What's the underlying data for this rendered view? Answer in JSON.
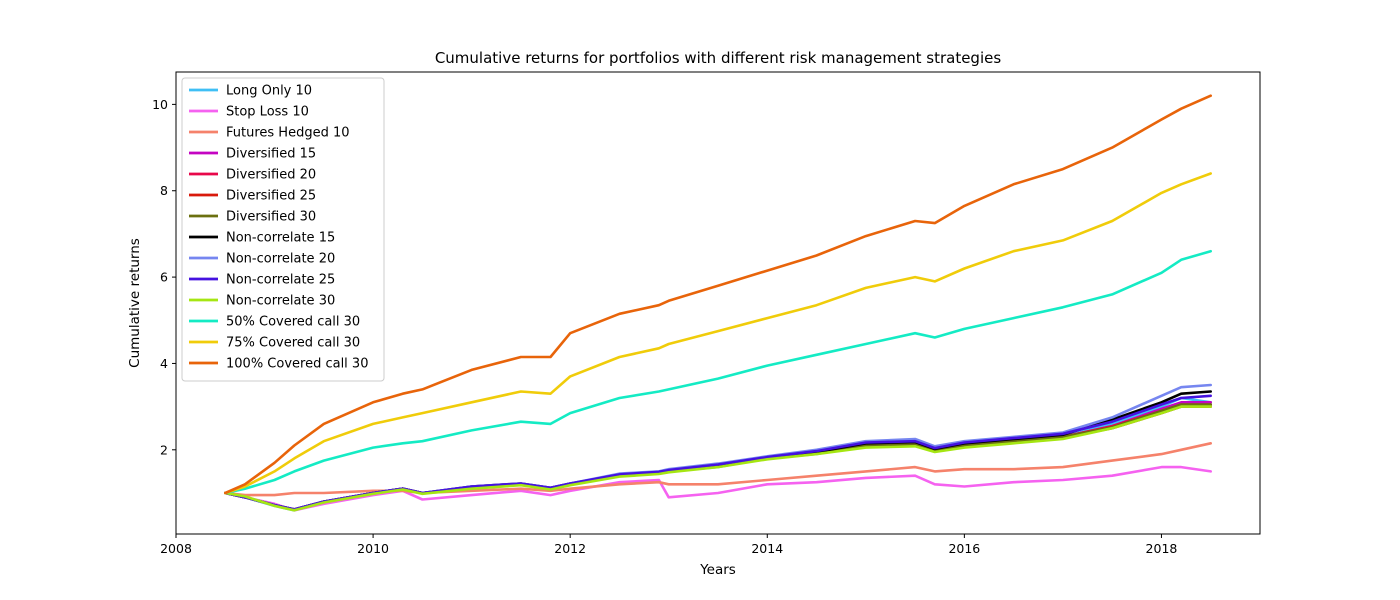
{
  "chart_data": {
    "type": "line",
    "title": "Cumulative returns for portfolios with different risk management strategies",
    "xlabel": "Years",
    "ylabel": "Cumulative returns",
    "xlim": [
      2008.0,
      2019.0
    ],
    "ylim": [
      0.05,
      10.75
    ],
    "xticks": [
      2008,
      2010,
      2012,
      2014,
      2016,
      2018
    ],
    "xtick_labels": [
      "2008",
      "2010",
      "2012",
      "2014",
      "2016",
      "2018"
    ],
    "yticks": [
      2,
      4,
      6,
      8,
      10
    ],
    "ytick_labels": [
      "2",
      "4",
      "6",
      "8",
      "10"
    ],
    "grid": false,
    "legend_position": "top-left",
    "x": [
      2008.5,
      2008.7,
      2009.0,
      2009.2,
      2009.5,
      2010.0,
      2010.3,
      2010.5,
      2011.0,
      2011.5,
      2011.8,
      2012.0,
      2012.5,
      2012.9,
      2013.0,
      2013.5,
      2014.0,
      2014.5,
      2015.0,
      2015.5,
      2015.7,
      2016.0,
      2016.5,
      2017.0,
      2017.5,
      2018.0,
      2018.2,
      2018.5
    ],
    "series": [
      {
        "name": "Long Only 10",
        "color": "#3fbff5",
        "values": [
          1.0,
          0.9,
          0.7,
          0.6,
          0.8,
          1.0,
          1.1,
          1.0,
          1.1,
          1.2,
          1.1,
          1.2,
          1.4,
          1.45,
          1.5,
          1.6,
          1.8,
          1.9,
          2.1,
          2.15,
          2.0,
          2.1,
          2.2,
          2.3,
          2.6,
          3.0,
          3.2,
          3.1
        ]
      },
      {
        "name": "Stop Loss 10",
        "color": "#f562f0",
        "values": [
          1.0,
          0.9,
          0.75,
          0.6,
          0.75,
          0.95,
          1.05,
          0.85,
          0.95,
          1.05,
          0.95,
          1.05,
          1.25,
          1.3,
          0.9,
          1.0,
          1.2,
          1.25,
          1.35,
          1.4,
          1.2,
          1.15,
          1.25,
          1.3,
          1.4,
          1.6,
          1.6,
          1.5
        ]
      },
      {
        "name": "Futures Hedged 10",
        "color": "#f5826b",
        "values": [
          1.0,
          0.95,
          0.95,
          1.0,
          1.0,
          1.05,
          1.05,
          1.0,
          1.05,
          1.1,
          1.05,
          1.1,
          1.2,
          1.25,
          1.2,
          1.2,
          1.3,
          1.4,
          1.5,
          1.6,
          1.5,
          1.55,
          1.55,
          1.6,
          1.75,
          1.9,
          2.0,
          2.15
        ]
      },
      {
        "name": "Diversified 15",
        "color": "#c405c2",
        "values": [
          1.0,
          0.9,
          0.72,
          0.62,
          0.8,
          1.0,
          1.1,
          1.0,
          1.12,
          1.2,
          1.1,
          1.2,
          1.4,
          1.45,
          1.5,
          1.62,
          1.8,
          1.92,
          2.1,
          2.12,
          1.98,
          2.1,
          2.2,
          2.3,
          2.55,
          2.95,
          3.1,
          3.1
        ]
      },
      {
        "name": "Diversified 20",
        "color": "#e8074a",
        "values": [
          1.0,
          0.9,
          0.72,
          0.62,
          0.8,
          1.0,
          1.1,
          1.0,
          1.12,
          1.2,
          1.1,
          1.2,
          1.4,
          1.45,
          1.5,
          1.62,
          1.8,
          1.92,
          2.1,
          2.12,
          1.98,
          2.1,
          2.2,
          2.3,
          2.55,
          2.9,
          3.05,
          3.05
        ]
      },
      {
        "name": "Diversified 25",
        "color": "#d91a0c",
        "values": [
          1.0,
          0.9,
          0.72,
          0.62,
          0.8,
          1.0,
          1.1,
          1.0,
          1.12,
          1.2,
          1.1,
          1.2,
          1.4,
          1.45,
          1.5,
          1.62,
          1.8,
          1.92,
          2.1,
          2.12,
          1.98,
          2.1,
          2.2,
          2.28,
          2.5,
          2.85,
          3.0,
          3.0
        ]
      },
      {
        "name": "Diversified 30",
        "color": "#6b7010",
        "values": [
          1.0,
          0.9,
          0.72,
          0.62,
          0.8,
          1.0,
          1.1,
          1.0,
          1.12,
          1.2,
          1.1,
          1.2,
          1.4,
          1.45,
          1.5,
          1.62,
          1.8,
          1.92,
          2.1,
          2.12,
          1.98,
          2.1,
          2.2,
          2.3,
          2.52,
          2.9,
          3.05,
          3.05
        ]
      },
      {
        "name": "Non-correlate 15",
        "color": "#000000",
        "values": [
          1.0,
          0.9,
          0.72,
          0.62,
          0.8,
          1.0,
          1.1,
          1.0,
          1.15,
          1.22,
          1.12,
          1.22,
          1.42,
          1.48,
          1.52,
          1.65,
          1.82,
          1.95,
          2.15,
          2.18,
          2.02,
          2.15,
          2.25,
          2.35,
          2.7,
          3.1,
          3.3,
          3.35
        ]
      },
      {
        "name": "Non-correlate 20",
        "color": "#7686f0",
        "values": [
          1.0,
          0.9,
          0.72,
          0.62,
          0.8,
          1.0,
          1.1,
          1.0,
          1.15,
          1.22,
          1.12,
          1.22,
          1.45,
          1.5,
          1.55,
          1.68,
          1.85,
          2.0,
          2.2,
          2.25,
          2.08,
          2.2,
          2.3,
          2.4,
          2.75,
          3.25,
          3.45,
          3.5
        ]
      },
      {
        "name": "Non-correlate 25",
        "color": "#4512e0",
        "values": [
          1.0,
          0.9,
          0.72,
          0.62,
          0.8,
          1.0,
          1.1,
          1.0,
          1.15,
          1.22,
          1.12,
          1.22,
          1.43,
          1.49,
          1.53,
          1.66,
          1.83,
          1.97,
          2.17,
          2.2,
          2.04,
          2.17,
          2.27,
          2.37,
          2.65,
          3.05,
          3.2,
          3.25
        ]
      },
      {
        "name": "Non-correlate 30",
        "color": "#a5e612",
        "values": [
          1.0,
          0.92,
          0.7,
          0.6,
          0.78,
          0.98,
          1.08,
          0.98,
          1.1,
          1.18,
          1.08,
          1.18,
          1.38,
          1.44,
          1.48,
          1.6,
          1.78,
          1.9,
          2.05,
          2.08,
          1.95,
          2.05,
          2.15,
          2.25,
          2.5,
          2.85,
          3.0,
          3.0
        ]
      },
      {
        "name": "50% Covered call 30",
        "color": "#14ebc4",
        "values": [
          1.0,
          1.1,
          1.3,
          1.5,
          1.75,
          2.05,
          2.15,
          2.2,
          2.45,
          2.65,
          2.6,
          2.85,
          3.2,
          3.35,
          3.4,
          3.65,
          3.95,
          4.2,
          4.45,
          4.7,
          4.6,
          4.8,
          5.05,
          5.3,
          5.6,
          6.1,
          6.4,
          6.6
        ]
      },
      {
        "name": "75% Covered call 30",
        "color": "#f0cc0a",
        "values": [
          1.0,
          1.15,
          1.5,
          1.8,
          2.2,
          2.6,
          2.75,
          2.85,
          3.1,
          3.35,
          3.3,
          3.7,
          4.15,
          4.35,
          4.45,
          4.75,
          5.05,
          5.35,
          5.75,
          6.0,
          5.9,
          6.2,
          6.6,
          6.85,
          7.3,
          7.95,
          8.15,
          8.4
        ]
      },
      {
        "name": "100% Covered call 30",
        "color": "#e8640a",
        "values": [
          1.0,
          1.2,
          1.7,
          2.1,
          2.6,
          3.1,
          3.3,
          3.4,
          3.85,
          4.15,
          4.15,
          4.7,
          5.15,
          5.35,
          5.45,
          5.8,
          6.15,
          6.5,
          6.95,
          7.3,
          7.25,
          7.65,
          8.15,
          8.5,
          9.0,
          9.65,
          9.9,
          10.2
        ]
      }
    ]
  }
}
